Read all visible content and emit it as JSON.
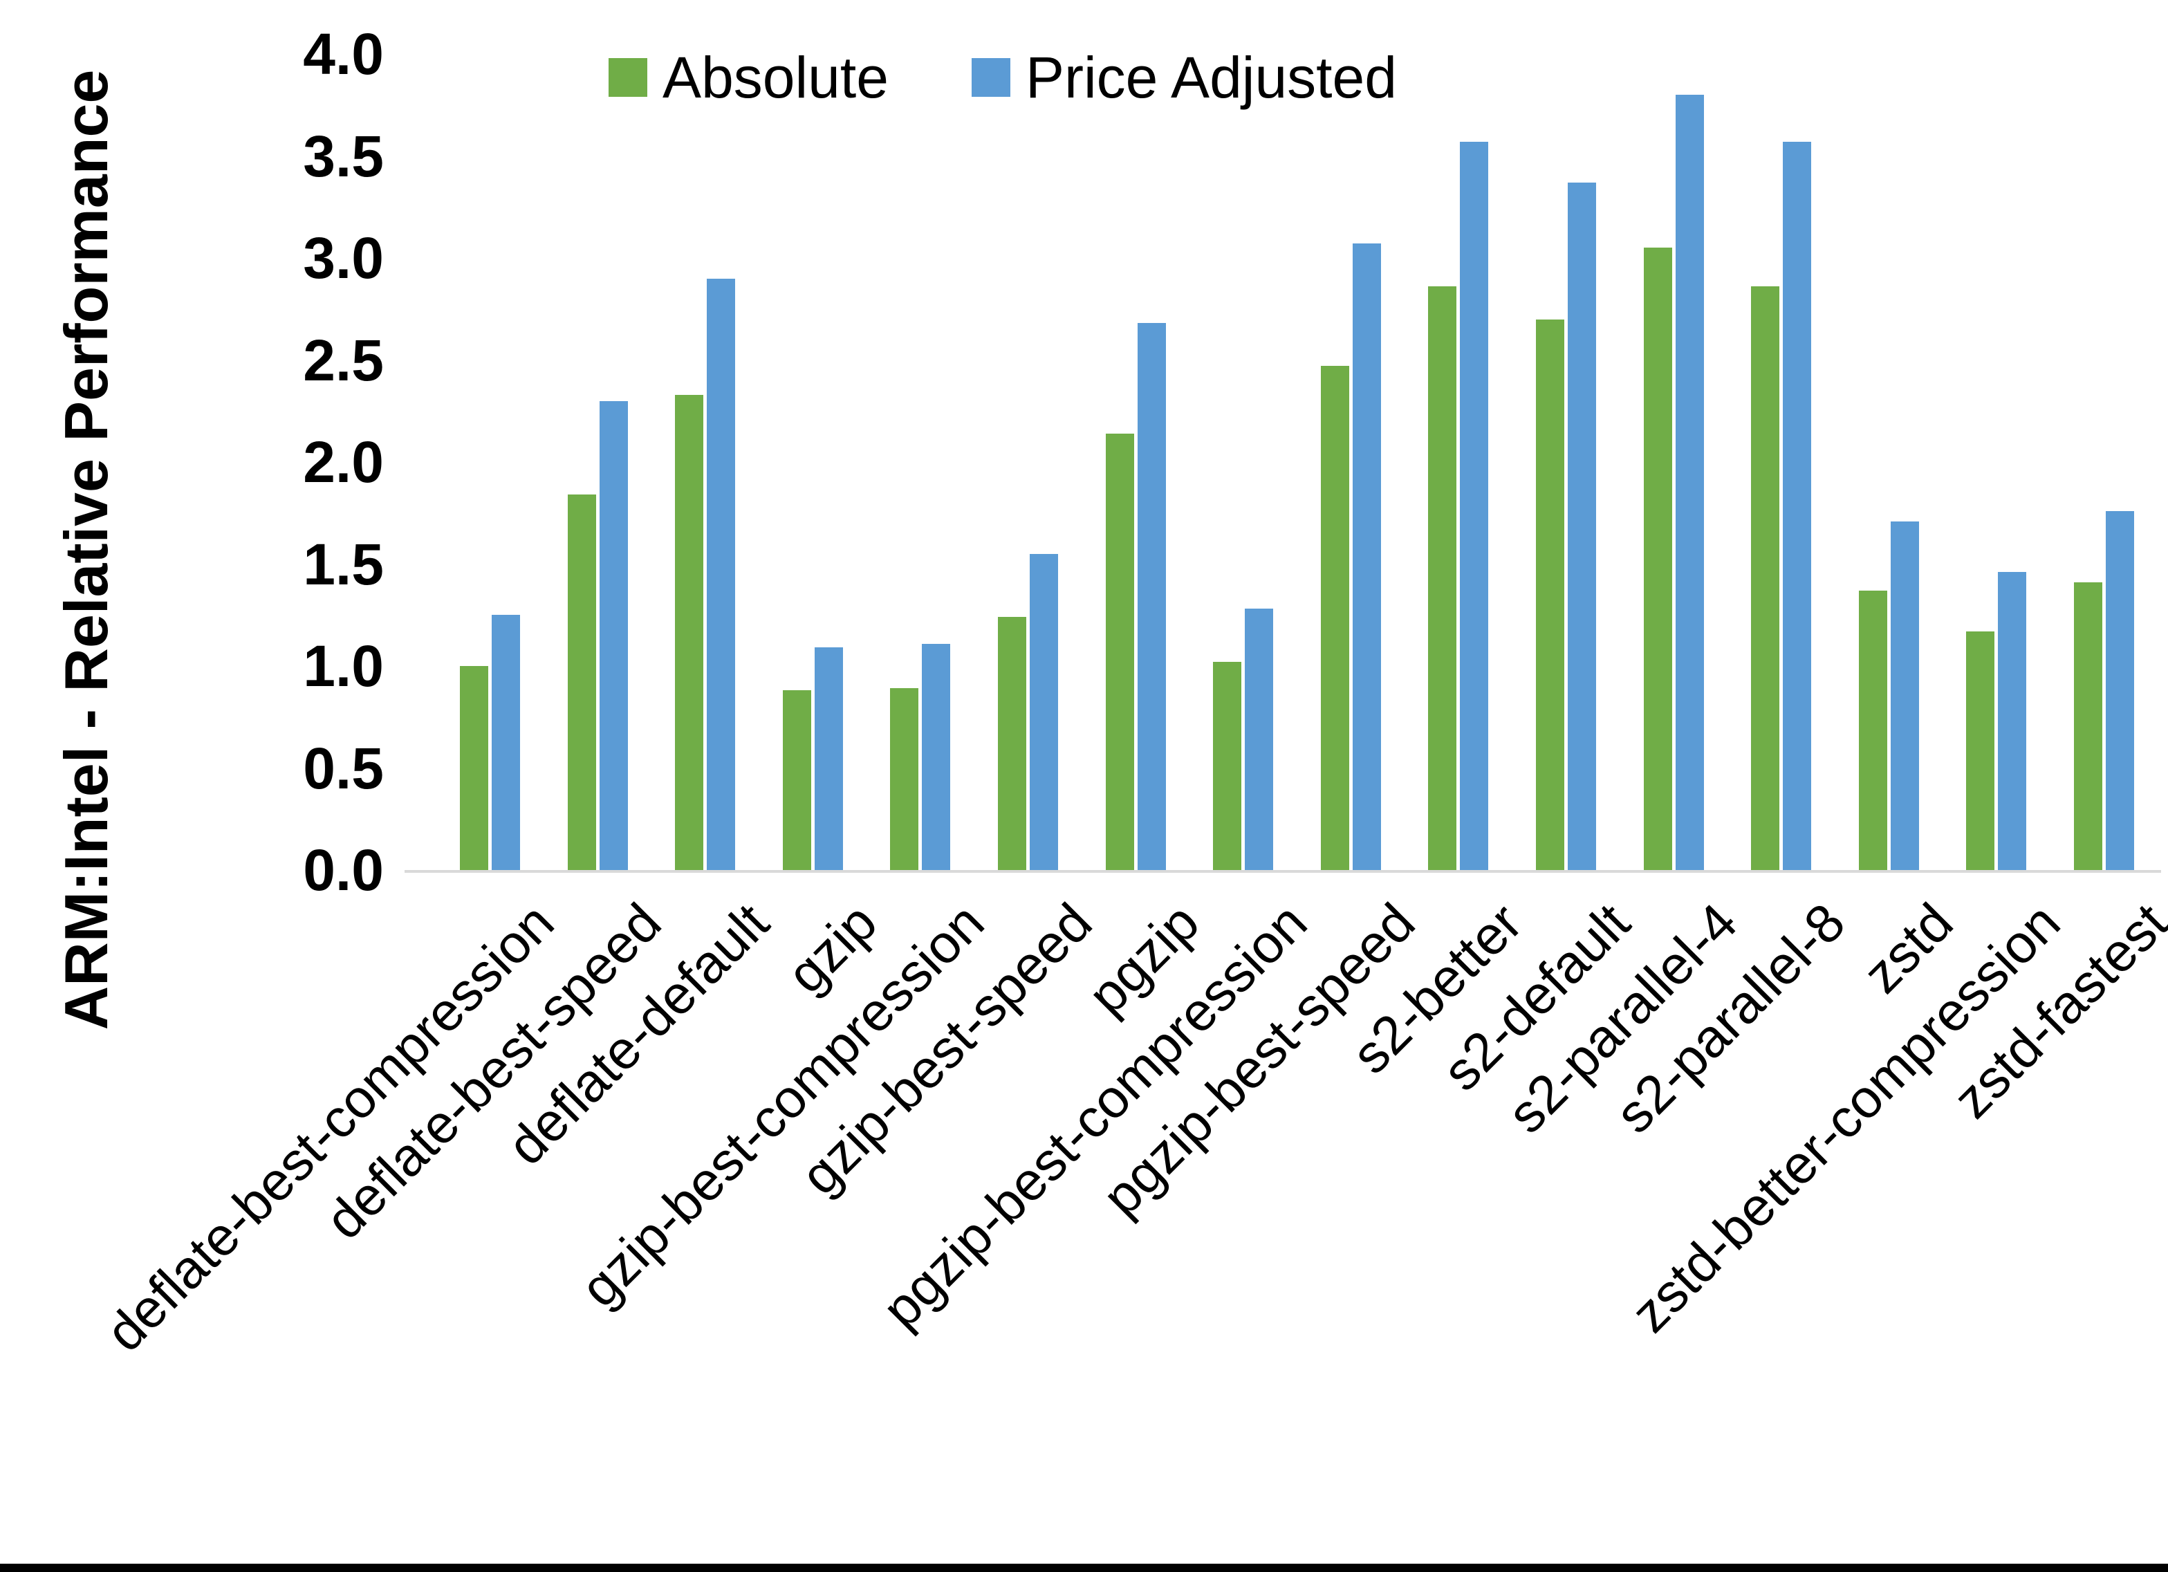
{
  "chart_data": {
    "type": "bar",
    "title": "",
    "ylabel": "ARM:Intel - Relative Performance",
    "xlabel": "",
    "ylim": [
      0.0,
      4.0
    ],
    "ytick_step": 0.5,
    "yticks": [
      "0.0",
      "0.5",
      "1.0",
      "1.5",
      "2.0",
      "2.5",
      "3.0",
      "3.5",
      "4.0"
    ],
    "grid": false,
    "legend_position": "top-center",
    "axis_line_color": "#d9d9d9",
    "categories": [
      "deflate-best-compression",
      "deflate-best-speed",
      "deflate-default",
      "gzip",
      "gzip-best-compression",
      "gzip-best-speed",
      "pgzip",
      "pgzip-best-compression",
      "pgzip-best-speed",
      "s2-better",
      "s2-default",
      "s2-parallel-4",
      "s2-parallel-8",
      "zstd",
      "zstd-better-compression",
      "zstd-fastest"
    ],
    "series": [
      {
        "name": "Absolute",
        "color": "#70ad47",
        "values": [
          1.0,
          1.84,
          2.33,
          0.88,
          0.89,
          1.24,
          2.14,
          1.02,
          2.47,
          2.86,
          2.7,
          3.05,
          2.86,
          1.37,
          1.17,
          1.41
        ]
      },
      {
        "name": "Price Adjusted",
        "color": "#5b9bd5",
        "values": [
          1.25,
          2.3,
          2.9,
          1.09,
          1.11,
          1.55,
          2.68,
          1.28,
          3.07,
          3.57,
          3.37,
          3.8,
          3.57,
          1.71,
          1.46,
          1.76
        ]
      }
    ]
  }
}
